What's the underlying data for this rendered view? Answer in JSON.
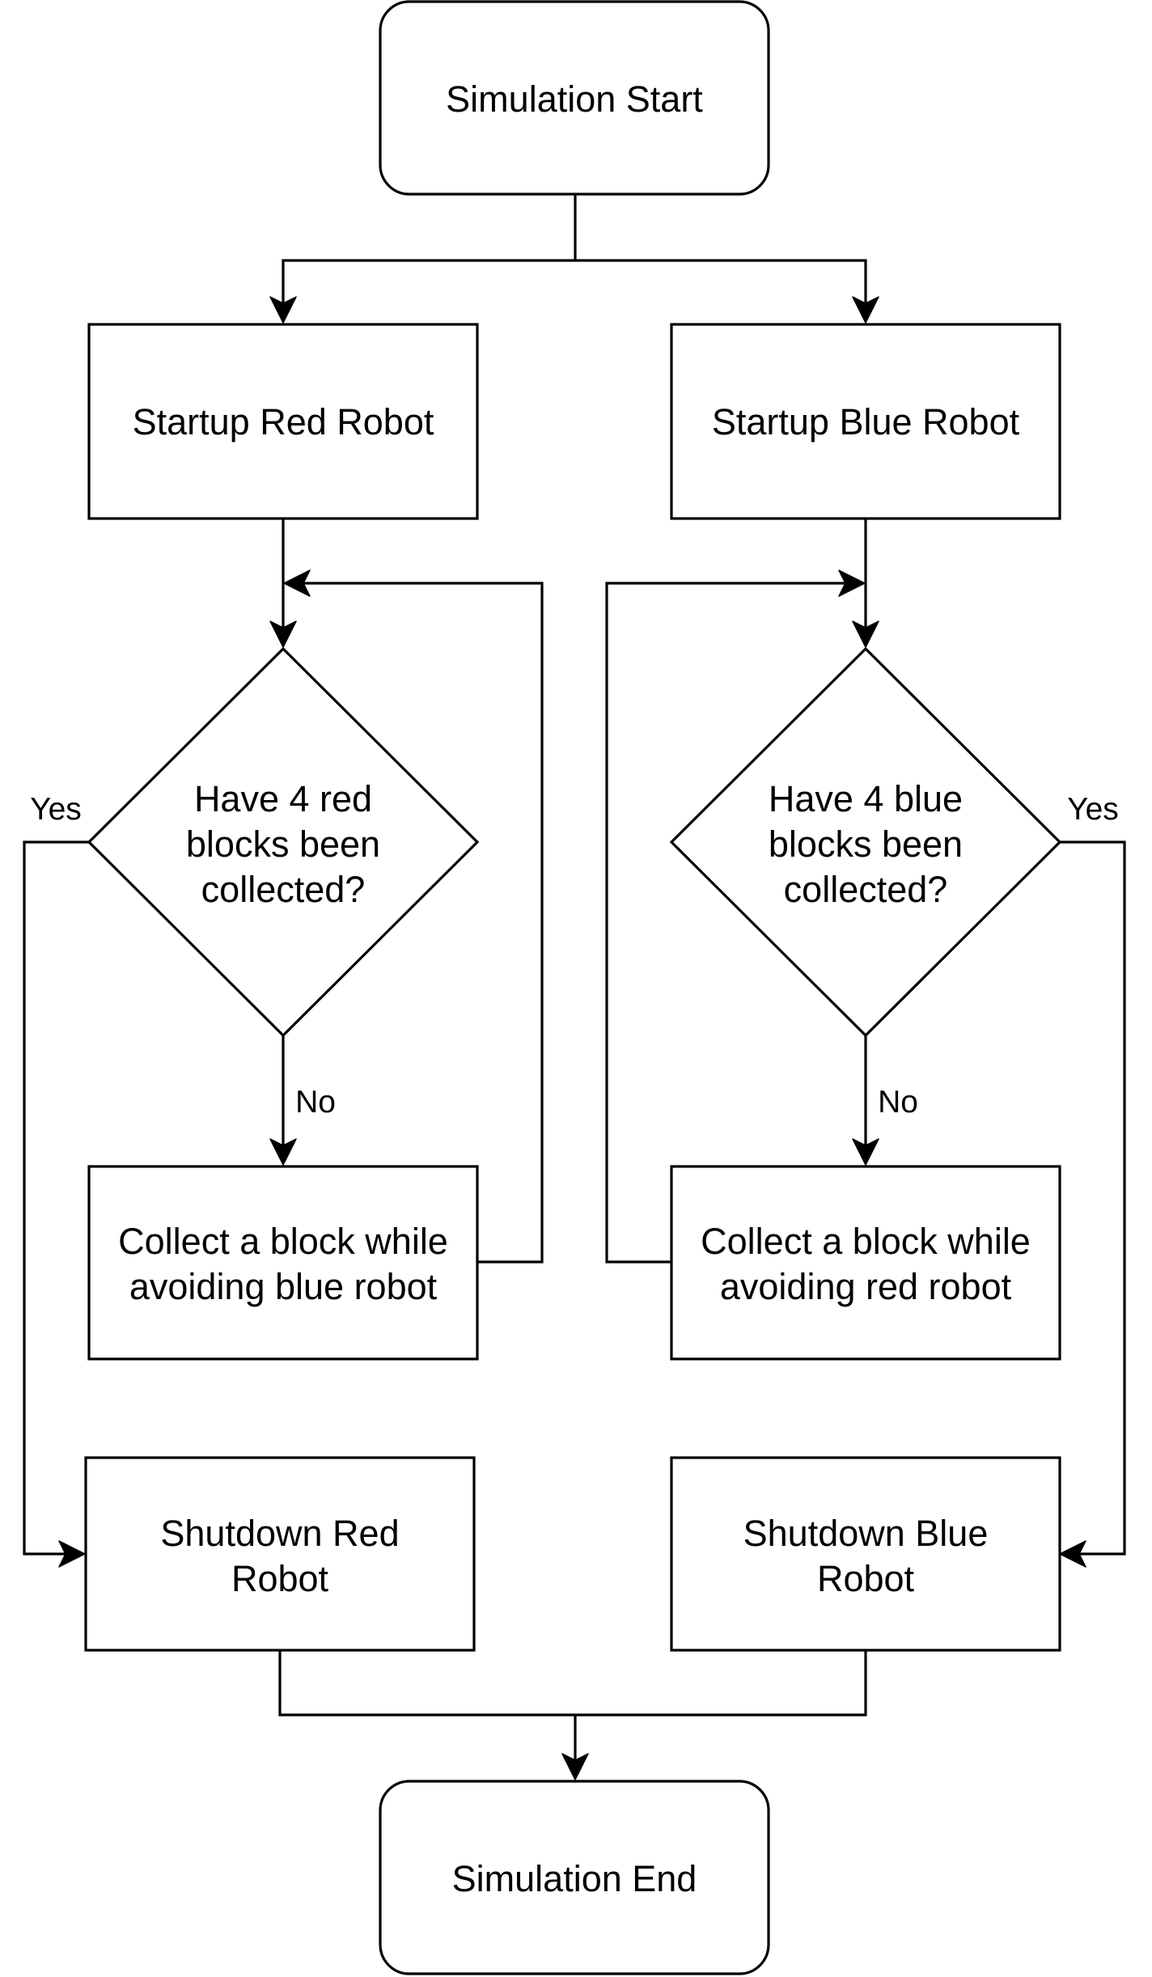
{
  "nodes": {
    "start": "Simulation Start",
    "startup_red": "Startup Red Robot",
    "startup_blue": "Startup Blue Robot",
    "decision_red": [
      "Have 4 red",
      "blocks been",
      "collected?"
    ],
    "decision_blue": [
      "Have 4 blue",
      "blocks been",
      "collected?"
    ],
    "collect_red": [
      "Collect a block while",
      "avoiding blue robot"
    ],
    "collect_blue": [
      "Collect a block while",
      "avoiding red robot"
    ],
    "shutdown_red": [
      "Shutdown Red",
      "Robot"
    ],
    "shutdown_blue": [
      "Shutdown Blue",
      "Robot"
    ],
    "end": "Simulation End"
  },
  "edge_labels": {
    "red_yes": "Yes",
    "red_no": "No",
    "blue_yes": "Yes",
    "blue_no": "No"
  }
}
